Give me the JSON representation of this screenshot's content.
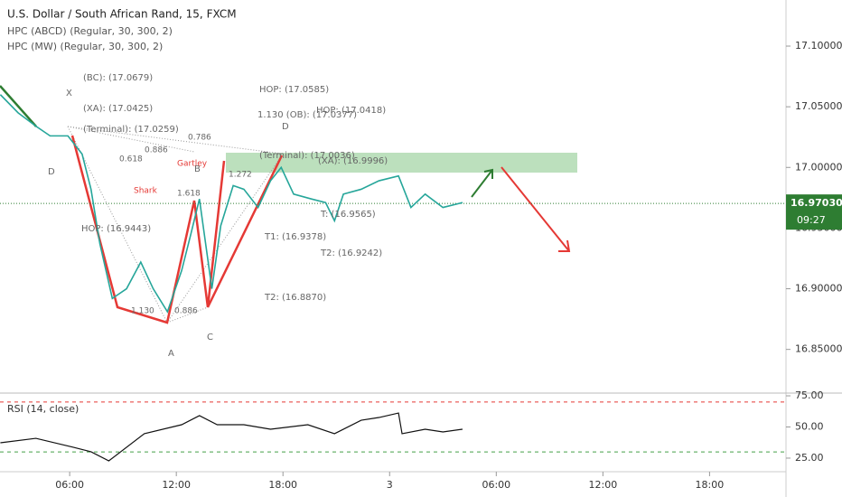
{
  "chart_data": [
    {
      "type": "line",
      "title": "U.S. Dollar / South African Rand, 15, FXCM",
      "indicators": [
        "HPC (ABCD) (Regular, 30, 300, 2)",
        "HPC (MW) (Regular, 30, 300, 2)"
      ],
      "x": [
        2.1,
        3.1,
        4.1,
        4.9,
        5.9,
        6.7,
        7.2,
        7.7,
        8.4,
        9.2,
        10.0,
        10.7,
        11.5,
        12.3,
        12.8,
        13.3,
        14.0,
        14.5,
        15.2,
        15.8,
        16.6,
        17.3,
        17.9,
        18.6,
        19.6,
        20.4,
        20.9,
        21.4,
        22.4,
        23.4,
        24.5,
        25.2,
        26.0,
        27.0,
        28.1
      ],
      "values": [
        17.06,
        17.045,
        17.034,
        17.026,
        17.026,
        17.011,
        16.982,
        16.937,
        16.892,
        16.9,
        16.922,
        16.9,
        16.881,
        16.915,
        16.944,
        16.974,
        16.9,
        16.952,
        16.985,
        16.982,
        16.967,
        16.989,
        17.0,
        16.978,
        16.974,
        16.971,
        16.956,
        16.978,
        16.982,
        16.989,
        16.993,
        16.967,
        16.978,
        16.967,
        16.971
      ],
      "color": "#26a69a",
      "xlim": [
        2.08,
        46.3
      ],
      "ylim": [
        16.814,
        17.138
      ],
      "yticks": [
        {
          "value": 16.85,
          "label": "16.85000"
        },
        {
          "value": 16.9,
          "label": "16.90000"
        },
        {
          "value": 16.95,
          "label": "16.95000"
        },
        {
          "value": 17.0,
          "label": "17.00000"
        },
        {
          "value": 17.05,
          "label": "17.05000"
        },
        {
          "value": 17.1,
          "label": "17.10000"
        }
      ],
      "last_price": {
        "value": 16.9703,
        "label": "16.97030"
      },
      "countdown": "09:27",
      "annotations": [
        "X",
        "D",
        "A",
        "B",
        "C",
        "D",
        "(BC): (17.0679)",
        "(XA): (17.0425)",
        "(Terminal): (17.0259)",
        "0.786",
        "0.886",
        "0.618",
        "Gartley",
        "Shark",
        "1.618",
        "1.272",
        "HOP: (17.0585)",
        "1.130 (OB): (17.0377)",
        "HOP: (17.0418)",
        "(Terminal): (17.0036)",
        "(XA): (16.9996)",
        "HOP: (16.9443)",
        "T: (16.9565)",
        "T1: (16.9378)",
        "T2: (16.9242)",
        "T2: (16.8870)",
        "1.130",
        "0.886"
      ]
    },
    {
      "type": "line",
      "title": "RSI (14, close)",
      "x": [
        2.1,
        4.1,
        6.2,
        7.2,
        8.2,
        10.2,
        12.3,
        13.3,
        14.3,
        15.8,
        17.3,
        19.4,
        20.9,
        22.4,
        23.4,
        24.5,
        24.7,
        26.0,
        27.0,
        28.1
      ],
      "values": [
        37.3,
        40.9,
        33.7,
        30.1,
        22.8,
        44.6,
        51.8,
        59.1,
        51.8,
        51.8,
        48.2,
        51.8,
        44.6,
        55.4,
        57.6,
        61.2,
        44.6,
        48.2,
        46.0,
        48.2
      ],
      "color": "#111111",
      "levels": [
        70,
        30
      ],
      "xlim": [
        2.08,
        46.3
      ],
      "ylim": [
        14.1,
        77.2
      ],
      "yticks": [
        {
          "value": 25,
          "label": "25.00"
        },
        {
          "value": 50,
          "label": "50.00"
        },
        {
          "value": 75,
          "label": "75.00"
        }
      ],
      "xticks": [
        {
          "value": 6,
          "label": "06:00"
        },
        {
          "value": 12,
          "label": "12:00"
        },
        {
          "value": 18,
          "label": "18:00"
        },
        {
          "value": 24,
          "label": "3"
        },
        {
          "value": 30,
          "label": "06:00"
        },
        {
          "value": 36,
          "label": "12:00"
        },
        {
          "value": 42,
          "label": "18:00"
        }
      ]
    }
  ]
}
